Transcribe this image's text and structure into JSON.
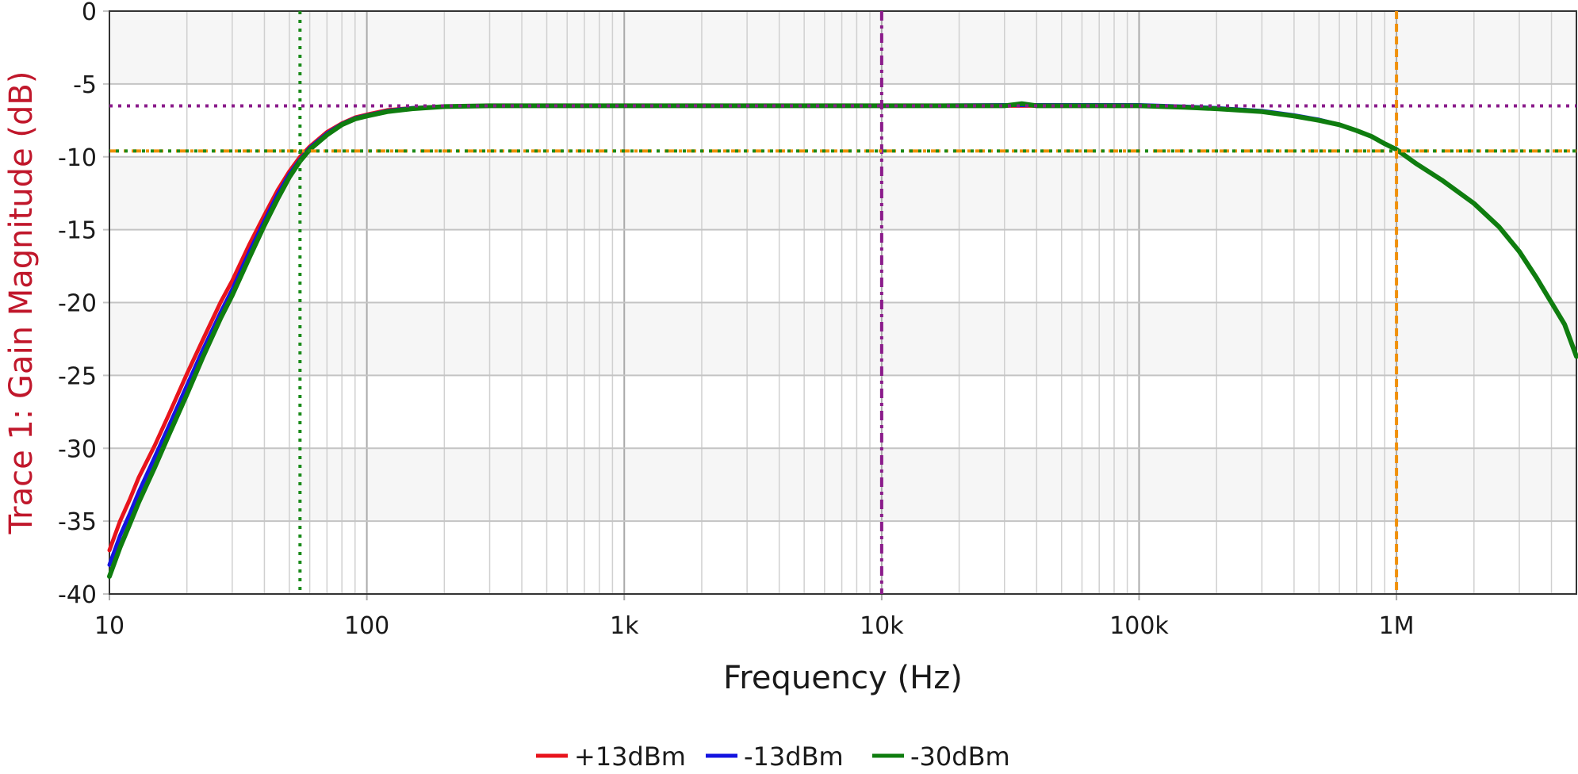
{
  "chart_data": {
    "type": "line",
    "xlabel": "Frequency (Hz)",
    "ylabel": "Trace 1: Gain Magnitude (dB)",
    "xscale": "log",
    "xlim": [
      10,
      5000000
    ],
    "ylim": [
      -40,
      0
    ],
    "x_ticks": [
      {
        "value": 10,
        "label": "10"
      },
      {
        "value": 100,
        "label": "100"
      },
      {
        "value": 1000,
        "label": "1k"
      },
      {
        "value": 10000,
        "label": "10k"
      },
      {
        "value": 100000,
        "label": "100k"
      },
      {
        "value": 1000000,
        "label": "1M"
      }
    ],
    "y_ticks": [
      {
        "value": 0,
        "label": "0"
      },
      {
        "value": -5,
        "label": "-5"
      },
      {
        "value": -10,
        "label": "-10"
      },
      {
        "value": -15,
        "label": "-15"
      },
      {
        "value": -20,
        "label": "-20"
      },
      {
        "value": -25,
        "label": "-25"
      },
      {
        "value": -30,
        "label": "-30"
      },
      {
        "value": -35,
        "label": "-35"
      },
      {
        "value": -40,
        "label": "-40"
      }
    ],
    "grid": true,
    "banded_background": true,
    "legend_position": "bottom-center",
    "series": [
      {
        "name": "+13dBm",
        "color": "#e8141c",
        "x": [
          10,
          11,
          12,
          13,
          15,
          17,
          20,
          23,
          27,
          30,
          35,
          40,
          45,
          50,
          55,
          60,
          70,
          80,
          90,
          100,
          120,
          150,
          200,
          300,
          500,
          1000,
          3000,
          10000,
          30000,
          100000,
          150000,
          200000,
          300000,
          400000,
          500000,
          600000,
          700000,
          800000,
          900000,
          1000000,
          1200000,
          1500000,
          2000000,
          2500000,
          3000000,
          3500000,
          4000000,
          4500000,
          5000000
        ],
        "y": [
          -37.0,
          -35.0,
          -33.5,
          -32.0,
          -29.8,
          -27.7,
          -24.9,
          -22.6,
          -20.0,
          -18.5,
          -16.0,
          -14.0,
          -12.3,
          -11.0,
          -10.0,
          -9.3,
          -8.3,
          -7.7,
          -7.3,
          -7.1,
          -6.8,
          -6.65,
          -6.55,
          -6.5,
          -6.5,
          -6.5,
          -6.5,
          -6.5,
          -6.5,
          -6.5,
          -6.6,
          -6.7,
          -6.9,
          -7.2,
          -7.5,
          -7.8,
          -8.2,
          -8.6,
          -9.1,
          -9.5,
          -10.5,
          -11.6,
          -13.2,
          -14.8,
          -16.5,
          -18.3,
          -20.0,
          -21.5,
          -23.7
        ]
      },
      {
        "name": "-13dBm",
        "color": "#1414e0",
        "x": [
          10,
          11,
          12,
          13,
          15,
          17,
          20,
          23,
          27,
          30,
          35,
          40,
          45,
          50,
          55,
          60,
          70,
          80,
          90,
          100,
          120,
          150,
          200,
          300,
          500,
          1000,
          3000,
          10000,
          30000,
          100000,
          150000,
          200000,
          300000,
          400000,
          500000,
          600000,
          700000,
          800000,
          900000,
          1000000,
          1200000,
          1500000,
          2000000,
          2500000,
          3000000,
          3500000,
          4000000,
          4500000,
          5000000
        ],
        "y": [
          -38.0,
          -36.0,
          -34.5,
          -33.0,
          -30.6,
          -28.5,
          -25.7,
          -23.3,
          -20.7,
          -19.1,
          -16.5,
          -14.4,
          -12.6,
          -11.2,
          -10.2,
          -9.4,
          -8.4,
          -7.75,
          -7.35,
          -7.15,
          -6.85,
          -6.65,
          -6.55,
          -6.5,
          -6.5,
          -6.5,
          -6.5,
          -6.5,
          -6.45,
          -6.45,
          -6.55,
          -6.65,
          -6.85,
          -7.15,
          -7.45,
          -7.8,
          -8.2,
          -8.6,
          -9.1,
          -9.5,
          -10.5,
          -11.6,
          -13.2,
          -14.8,
          -16.5,
          -18.3,
          -20.0,
          -21.5,
          -23.7
        ]
      },
      {
        "name": "-30dBm",
        "color": "#0f7d0f",
        "x": [
          10,
          11,
          12,
          13,
          15,
          17,
          20,
          23,
          27,
          30,
          35,
          40,
          45,
          50,
          55,
          60,
          70,
          80,
          90,
          100,
          120,
          150,
          200,
          300,
          500,
          1000,
          3000,
          10000,
          30000,
          35000,
          40000,
          100000,
          150000,
          200000,
          300000,
          400000,
          500000,
          600000,
          700000,
          800000,
          900000,
          1000000,
          1200000,
          1500000,
          2000000,
          2500000,
          3000000,
          3500000,
          4000000,
          4500000,
          5000000
        ],
        "y": [
          -38.8,
          -36.8,
          -35.2,
          -33.7,
          -31.3,
          -29.1,
          -26.3,
          -23.8,
          -21.1,
          -19.5,
          -16.9,
          -14.7,
          -12.9,
          -11.4,
          -10.3,
          -9.5,
          -8.5,
          -7.8,
          -7.4,
          -7.2,
          -6.9,
          -6.7,
          -6.55,
          -6.5,
          -6.5,
          -6.5,
          -6.5,
          -6.5,
          -6.5,
          -6.35,
          -6.5,
          -6.5,
          -6.6,
          -6.7,
          -6.9,
          -7.2,
          -7.5,
          -7.8,
          -8.2,
          -8.6,
          -9.1,
          -9.5,
          -10.5,
          -11.6,
          -13.2,
          -14.8,
          -16.5,
          -18.3,
          -20.0,
          -21.5,
          -23.7
        ]
      }
    ],
    "reference_lines": [
      {
        "orientation": "vertical",
        "value": 55,
        "color": "#1a8a1a",
        "style": "dotted"
      },
      {
        "orientation": "vertical",
        "value": 10000,
        "color": "#8a1a8a",
        "style": "dash-dot"
      },
      {
        "orientation": "vertical",
        "value": 1000000,
        "color": "#f0900a",
        "style": "dashed"
      },
      {
        "orientation": "horizontal",
        "value": -6.5,
        "color": "#8a1a8a",
        "style": "dotted"
      },
      {
        "orientation": "horizontal",
        "value": -9.6,
        "color": "#f0900a",
        "style": "dash-dot"
      },
      {
        "orientation": "horizontal",
        "value": -9.6,
        "color": "#1a8a1a",
        "style": "dotted"
      }
    ]
  }
}
